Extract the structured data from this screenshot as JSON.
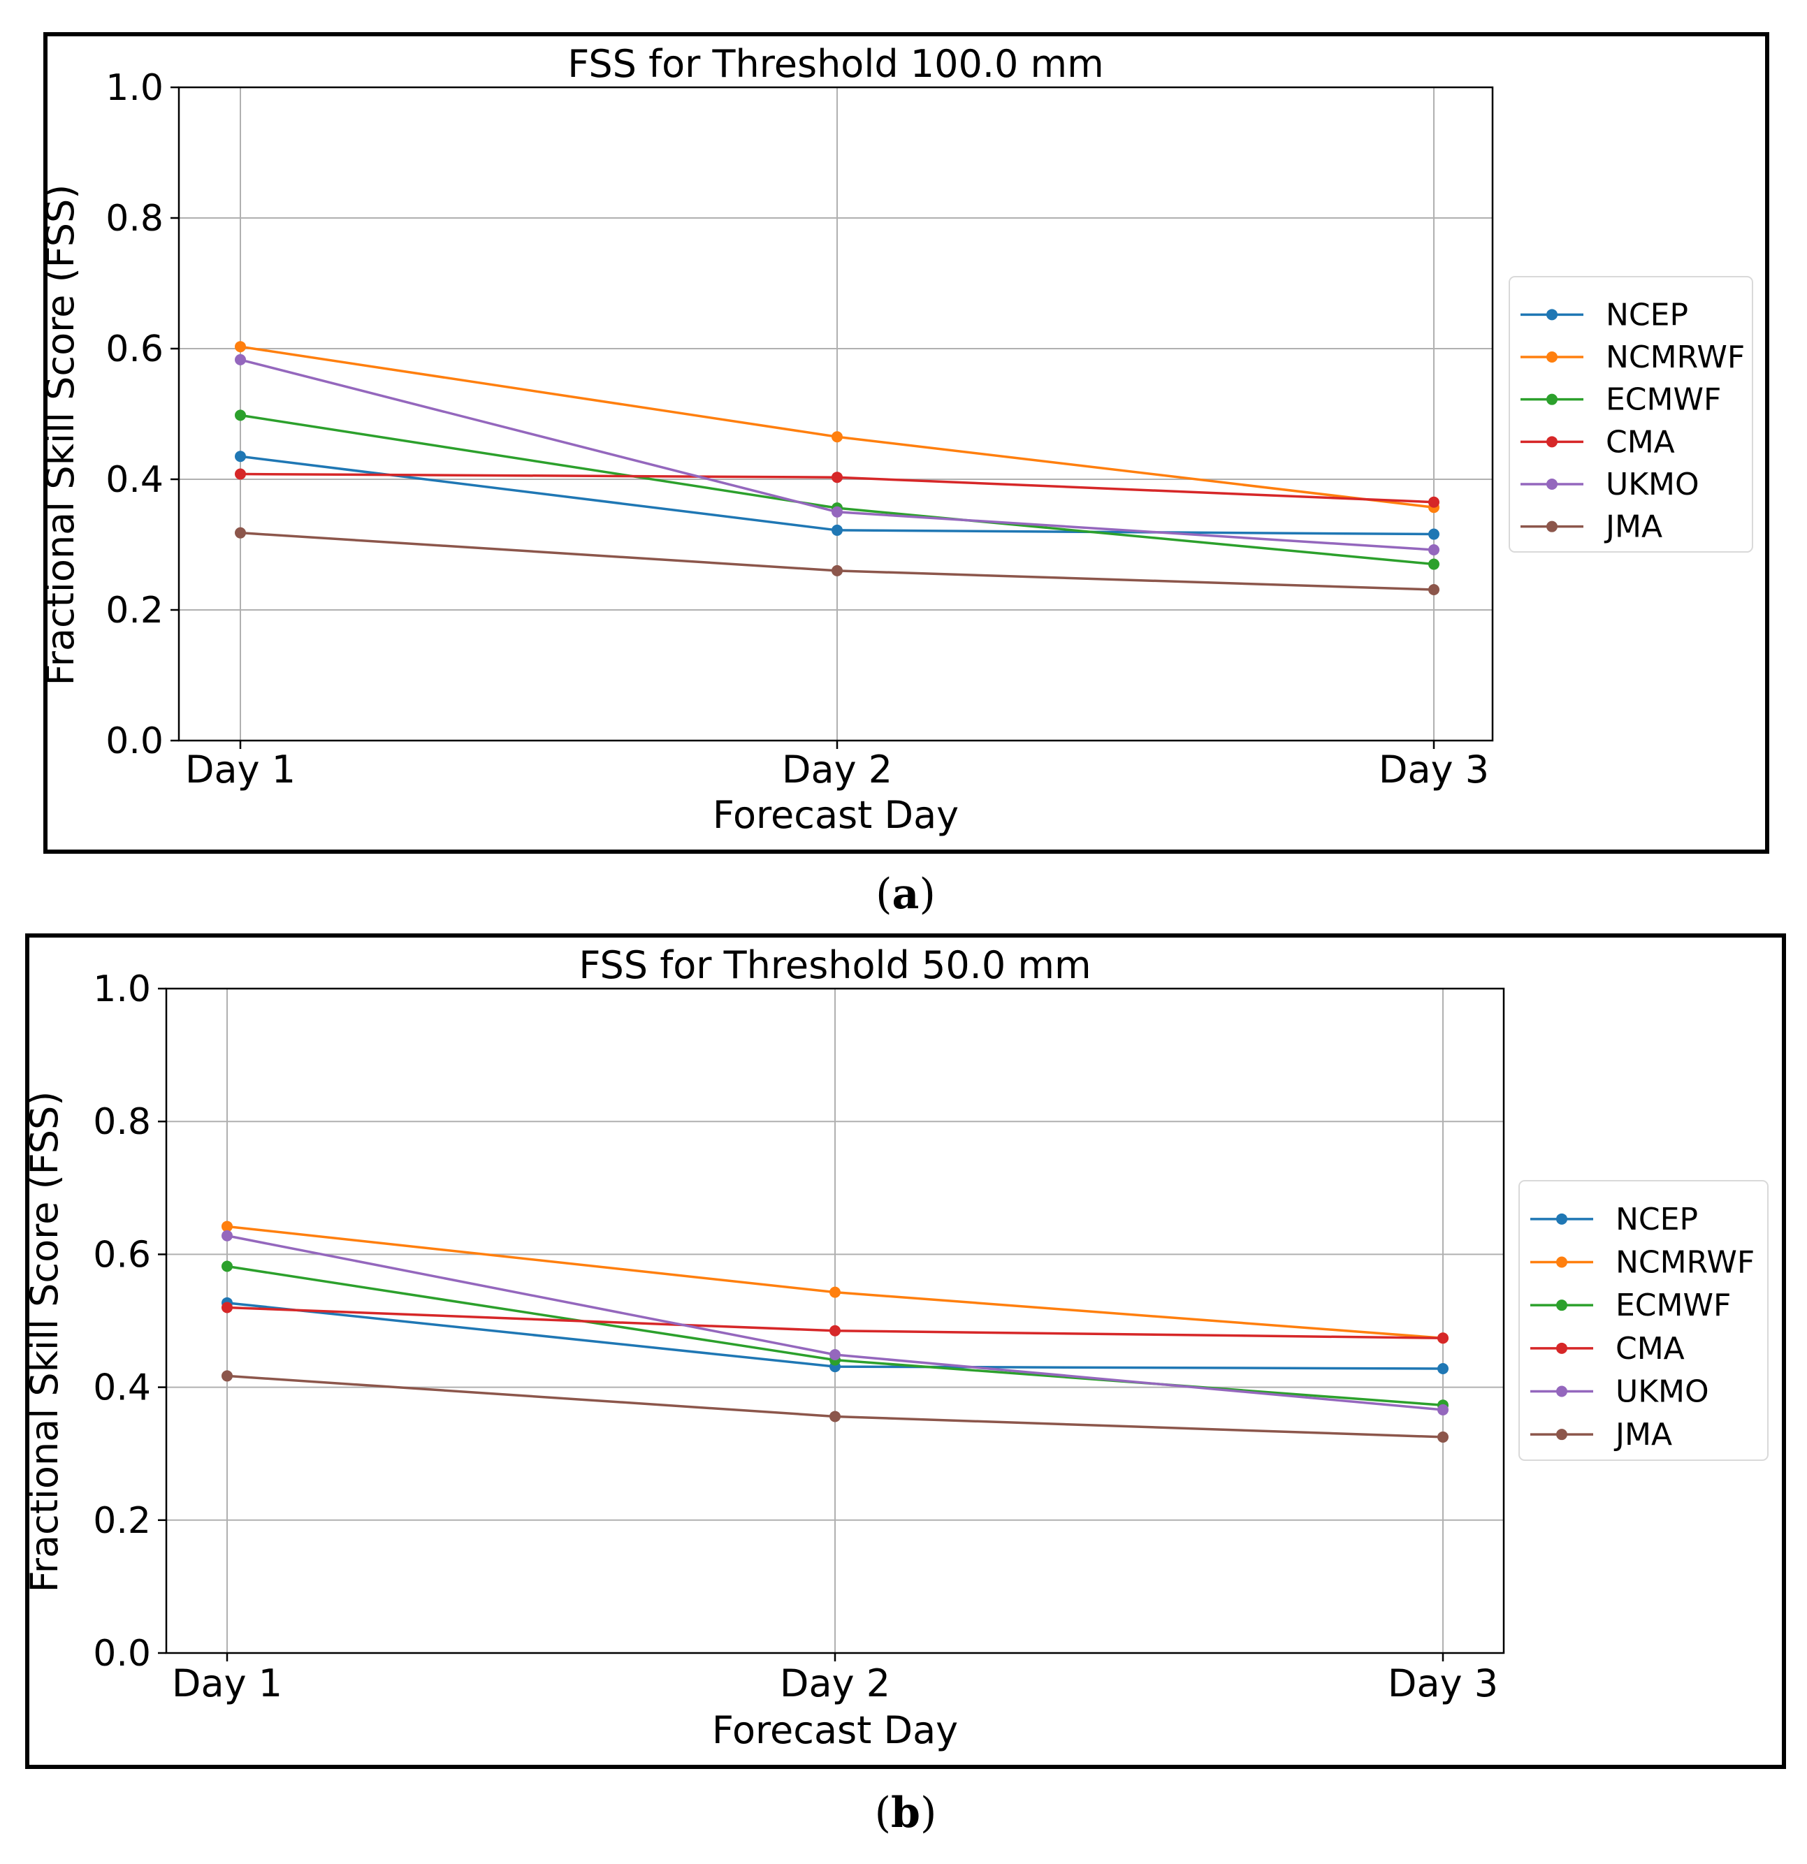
{
  "colors": {
    "NCEP": "#1f77b4",
    "NCMRWF": "#ff7f0e",
    "ECMWF": "#2ca02c",
    "CMA": "#d62728",
    "UKMO": "#9467bd",
    "JMA": "#8c564b"
  },
  "captions": {
    "a": {
      "open": "(",
      "letter": "a",
      "close": ")"
    },
    "b": {
      "open": "(",
      "letter": "b",
      "close": ")"
    }
  },
  "chart_data": [
    {
      "type": "line",
      "title": "FSS for Threshold 100.0 mm",
      "xlabel": "Forecast Day",
      "ylabel": "Fractional Skill Score (FSS)",
      "categories": [
        "Day 1",
        "Day 2",
        "Day 3"
      ],
      "ylim": [
        0.0,
        1.0
      ],
      "yticks": [
        "0.0",
        "0.2",
        "0.4",
        "0.6",
        "0.8",
        "1.0"
      ],
      "grid": true,
      "legend_position": "right",
      "series": [
        {
          "name": "NCEP",
          "values": [
            0.435,
            0.322,
            0.316
          ]
        },
        {
          "name": "NCMRWF",
          "values": [
            0.603,
            0.465,
            0.357
          ]
        },
        {
          "name": "ECMWF",
          "values": [
            0.498,
            0.356,
            0.27
          ]
        },
        {
          "name": "CMA",
          "values": [
            0.408,
            0.403,
            0.365
          ]
        },
        {
          "name": "UKMO",
          "values": [
            0.583,
            0.35,
            0.292
          ]
        },
        {
          "name": "JMA",
          "values": [
            0.318,
            0.26,
            0.231
          ]
        }
      ]
    },
    {
      "type": "line",
      "title": "FSS for Threshold 50.0 mm",
      "xlabel": "Forecast Day",
      "ylabel": "Fractional Skill Score (FSS)",
      "categories": [
        "Day 1",
        "Day 2",
        "Day 3"
      ],
      "ylim": [
        0.0,
        1.0
      ],
      "yticks": [
        "0.0",
        "0.2",
        "0.4",
        "0.6",
        "0.8",
        "1.0"
      ],
      "grid": true,
      "legend_position": "right",
      "series": [
        {
          "name": "NCEP",
          "values": [
            0.527,
            0.431,
            0.428
          ]
        },
        {
          "name": "NCMRWF",
          "values": [
            0.642,
            0.543,
            0.474
          ]
        },
        {
          "name": "ECMWF",
          "values": [
            0.582,
            0.441,
            0.373
          ]
        },
        {
          "name": "CMA",
          "values": [
            0.52,
            0.485,
            0.474
          ]
        },
        {
          "name": "UKMO",
          "values": [
            0.628,
            0.449,
            0.366
          ]
        },
        {
          "name": "JMA",
          "values": [
            0.417,
            0.356,
            0.325
          ]
        }
      ]
    }
  ]
}
